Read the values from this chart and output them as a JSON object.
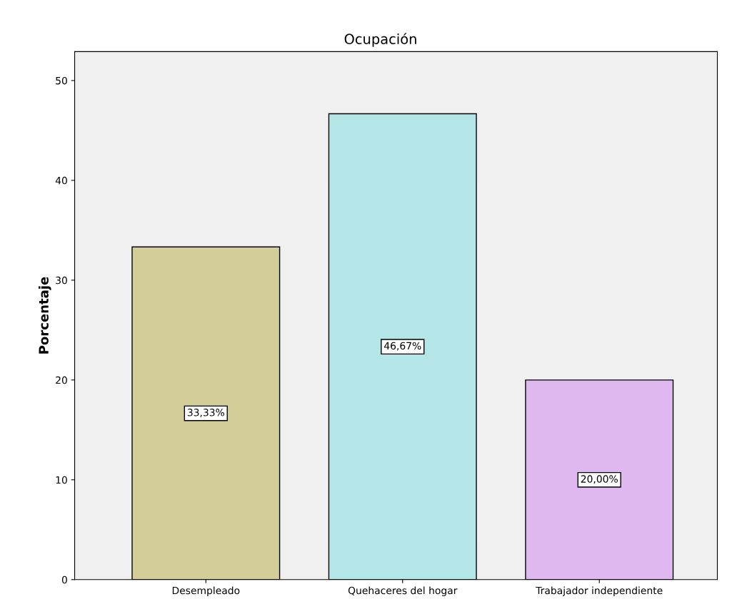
{
  "chart_data": {
    "type": "bar",
    "title": "Ocupación",
    "ylabel": "Porcentaje",
    "categories": [
      "Desempleado",
      "Quehaceres del hogar",
      "Trabajador independiente"
    ],
    "values": [
      33.33,
      46.67,
      20.0
    ],
    "colors": [
      "#d3ce97",
      "#b5e6e7",
      "#dfb8f0"
    ],
    "value_labels": [
      "33,33%",
      "46,67%",
      "20,00%"
    ],
    "ylim": [
      0,
      52.9
    ],
    "yticks": [
      0,
      10,
      20,
      30,
      40,
      50
    ],
    "grid": false,
    "legend": false
  }
}
